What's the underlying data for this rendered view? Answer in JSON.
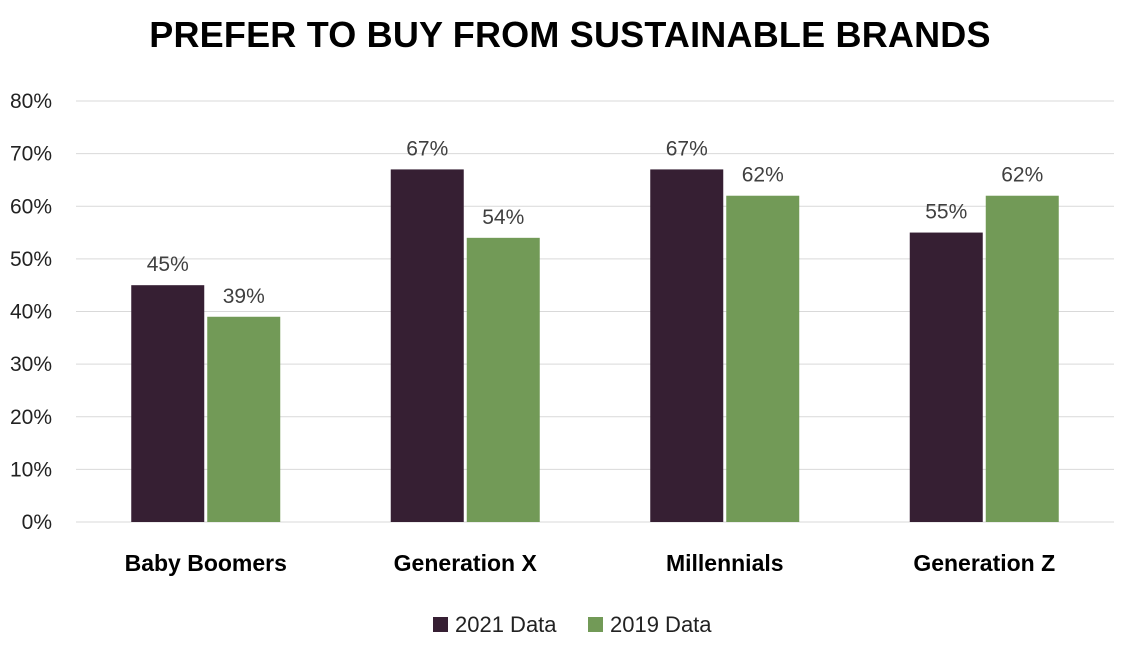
{
  "chart_data": {
    "type": "bar",
    "title": "PREFER TO BUY FROM SUSTAINABLE BRANDS",
    "categories": [
      "Baby Boomers",
      "Generation X",
      "Millennials",
      "Generation Z"
    ],
    "series": [
      {
        "name": "2021 Data",
        "values": [
          45,
          67,
          67,
          55
        ],
        "labels": [
          "45%",
          "67%",
          "67%",
          "55%"
        ],
        "color": "#361f33"
      },
      {
        "name": "2019 Data",
        "values": [
          39,
          54,
          62,
          62
        ],
        "labels": [
          "39%",
          "54%",
          "62%",
          "62%"
        ],
        "color": "#729a57"
      }
    ],
    "ylim": [
      0,
      80
    ],
    "yticks": [
      0,
      10,
      20,
      30,
      40,
      50,
      60,
      70,
      80
    ],
    "ytick_labels": [
      "0%",
      "10%",
      "20%",
      "30%",
      "40%",
      "50%",
      "60%",
      "70%",
      "80%"
    ],
    "grid": true,
    "legend_position": "bottom",
    "gridline_color": "#d9d9d9"
  }
}
